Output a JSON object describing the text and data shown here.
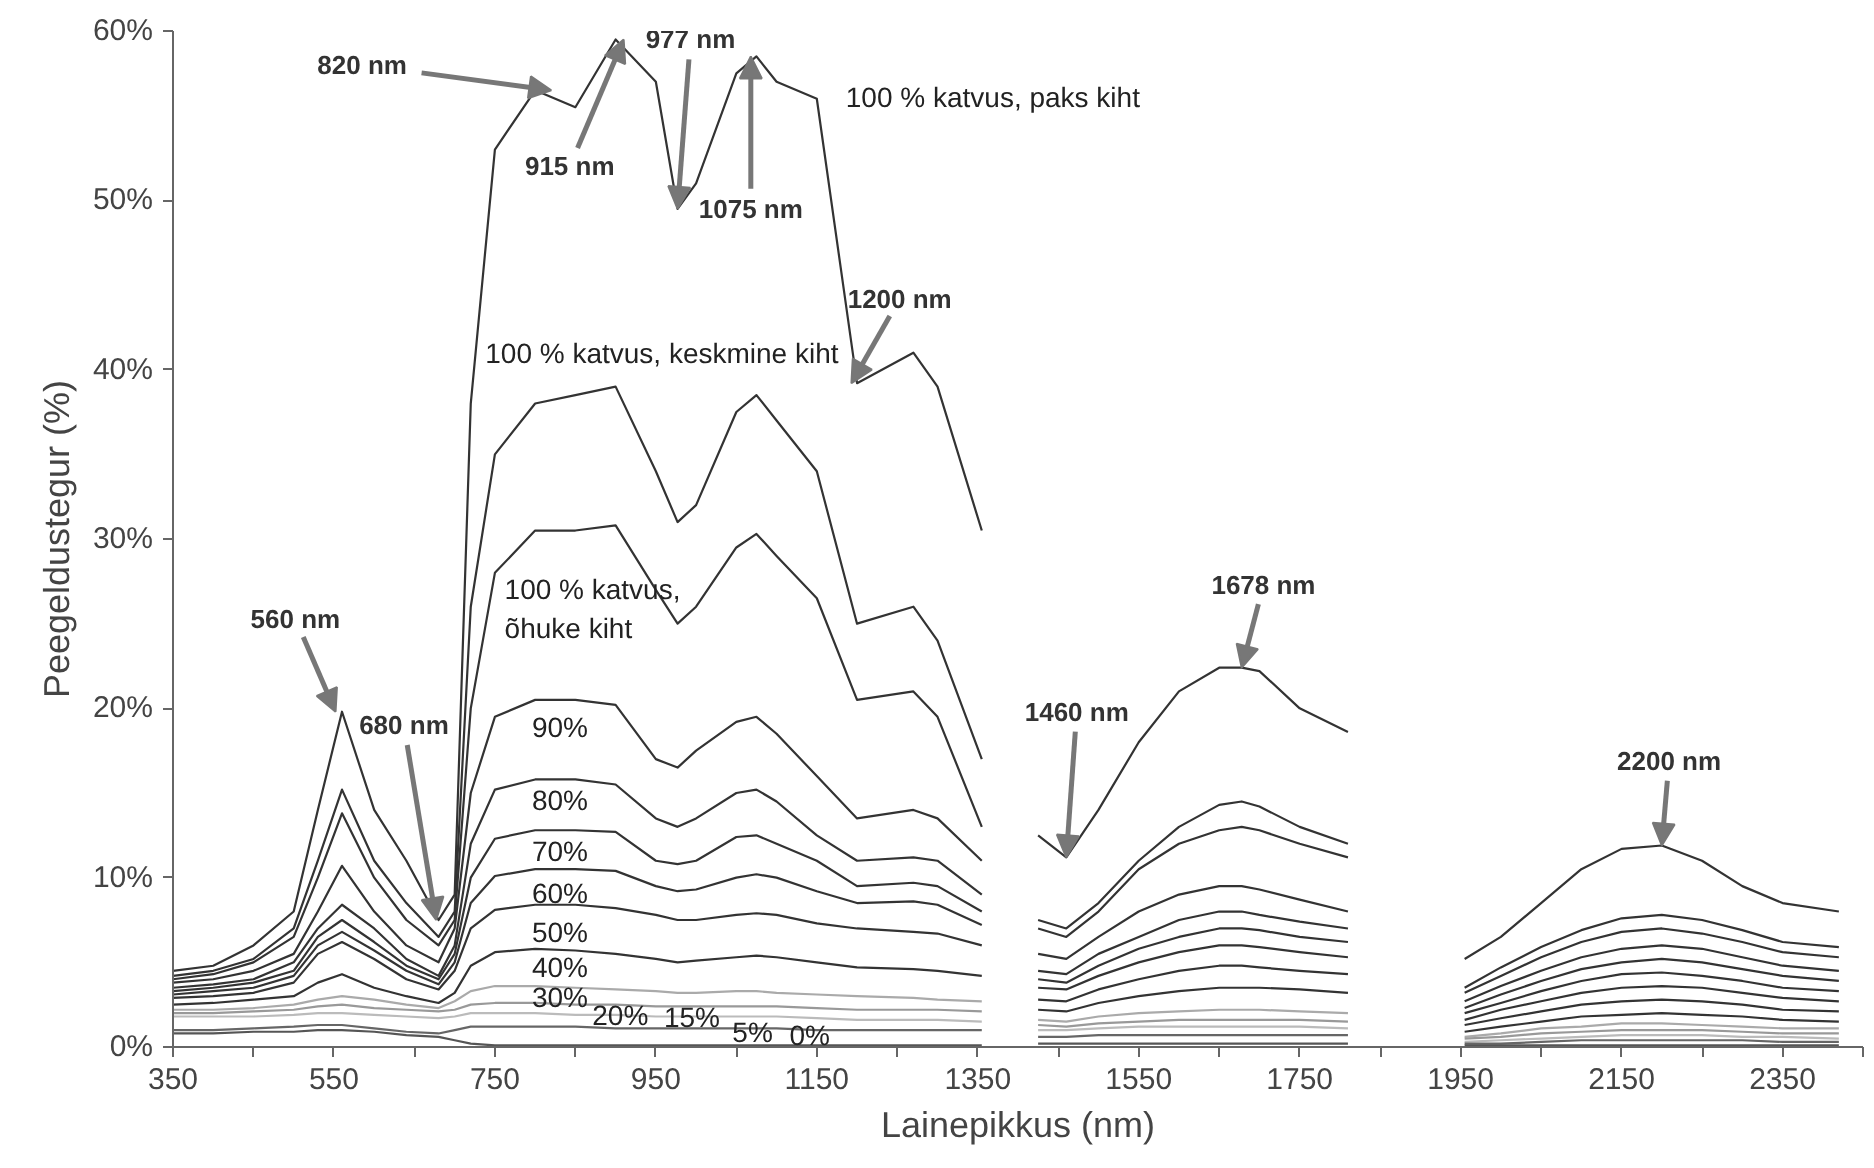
{
  "chart_data": {
    "type": "line",
    "xlabel": "Lainepikkus (nm)",
    "ylabel": "Peegeldustegur (%)",
    "xlim": [
      350,
      2450
    ],
    "ylim": [
      0,
      60
    ],
    "xticks": [
      350,
      {
        "value": 450,
        "label": null
      },
      550,
      {
        "value": 650,
        "label": null
      },
      750,
      {
        "value": 850,
        "label": null
      },
      950,
      {
        "value": 1050,
        "label": null
      },
      1150,
      {
        "value": 1250,
        "label": null
      },
      1350,
      {
        "value": 1450,
        "label": null
      },
      1550,
      {
        "value": 1650,
        "label": null
      },
      1750,
      {
        "value": 1850,
        "label": null
      },
      1950,
      {
        "value": 2050,
        "label": null
      },
      2150,
      {
        "value": 2250,
        "label": null
      },
      2350,
      {
        "value": 2450,
        "label": null
      }
    ],
    "yticks": [
      {
        "value": 0,
        "label": "0%"
      },
      {
        "value": 10,
        "label": "10%"
      },
      {
        "value": 20,
        "label": "20%"
      },
      {
        "value": 30,
        "label": "30%"
      },
      {
        "value": 40,
        "label": "40%"
      },
      {
        "value": 50,
        "label": "50%"
      },
      {
        "value": 60,
        "label": "60%"
      }
    ],
    "line_style": "solid",
    "x": [
      350,
      400,
      450,
      500,
      530,
      560,
      600,
      640,
      680,
      700,
      720,
      750,
      800,
      850,
      900,
      950,
      977,
      1000,
      1050,
      1075,
      1100,
      1150,
      1200,
      1270,
      1300,
      1355,
      1390,
      1425,
      1460,
      1500,
      1550,
      1600,
      1650,
      1678,
      1700,
      1750,
      1810,
      1880,
      1955,
      2000,
      2050,
      2100,
      2150,
      2200,
      2250,
      2300,
      2350,
      2420
    ],
    "series": [
      {
        "color": "#333333",
        "values": [
          4.5,
          4.8,
          6,
          8,
          14,
          19.8,
          14,
          11,
          7.5,
          9,
          38,
          53,
          56.5,
          55.5,
          59.5,
          57,
          49.5,
          51,
          57.5,
          58.5,
          57,
          56,
          39.2,
          41,
          39,
          30.5,
          null,
          12.5,
          11.2,
          14,
          18,
          21,
          22.4,
          22.4,
          22.2,
          20,
          18.6,
          null,
          5.2,
          6.5,
          8.5,
          10.5,
          11.7,
          11.9,
          11,
          9.5,
          8.5,
          8
        ]
      },
      {
        "color": "#333333",
        "values": [
          4.2,
          4.5,
          5.2,
          7,
          11,
          15.2,
          11,
          8.5,
          6.5,
          8,
          26,
          35,
          38,
          38.5,
          39,
          34,
          31,
          32,
          37.5,
          38.5,
          37,
          34,
          25,
          26,
          24,
          17,
          null,
          7.5,
          7,
          8.5,
          11,
          13,
          14.3,
          14.5,
          14.2,
          13,
          12,
          null,
          3.5,
          4.7,
          5.9,
          6.9,
          7.6,
          7.8,
          7.5,
          6.9,
          6.2,
          5.9
        ]
      },
      {
        "color": "#333333",
        "values": [
          4,
          4.3,
          5,
          6.5,
          10,
          13.8,
          10,
          7.5,
          6,
          7.5,
          20,
          28,
          30.5,
          30.5,
          30.8,
          27,
          25,
          26,
          29.5,
          30.3,
          29,
          26.5,
          20.5,
          21,
          19.5,
          13,
          null,
          7,
          6.5,
          8,
          10.5,
          12,
          12.8,
          13,
          12.8,
          12,
          11.2,
          null,
          3.2,
          4.2,
          5.3,
          6.2,
          6.8,
          7,
          6.7,
          6.2,
          5.6,
          5.3
        ]
      },
      {
        "color": "#333333",
        "values": [
          3.8,
          4,
          4.5,
          5.5,
          8,
          10.7,
          8,
          6,
          5,
          7,
          15,
          19.5,
          20.5,
          20.5,
          20.2,
          17,
          16.5,
          17.5,
          19.2,
          19.5,
          18.5,
          16,
          13.5,
          14,
          13.5,
          11,
          null,
          5.5,
          5.2,
          6.5,
          8,
          9,
          9.5,
          9.5,
          9.3,
          8.7,
          8,
          null,
          2.7,
          3.6,
          4.5,
          5.3,
          5.8,
          6,
          5.8,
          5.3,
          4.8,
          4.5
        ]
      },
      {
        "color": "#333333",
        "values": [
          3.5,
          3.7,
          4,
          5,
          7,
          8.4,
          7,
          5.2,
          4.2,
          6,
          12,
          15.2,
          15.8,
          15.8,
          15.5,
          13.5,
          13,
          13.5,
          15,
          15.2,
          14.5,
          12.5,
          11,
          11.2,
          11,
          9,
          null,
          4.5,
          4.3,
          5.5,
          6.5,
          7.5,
          8,
          8,
          7.8,
          7.4,
          7,
          null,
          2.3,
          3.1,
          3.9,
          4.6,
          5,
          5.2,
          5,
          4.6,
          4.2,
          3.9
        ]
      },
      {
        "color": "#333333",
        "values": [
          3.3,
          3.5,
          3.8,
          4.5,
          6.5,
          7.5,
          6.2,
          4.8,
          4,
          5.5,
          10,
          12.3,
          12.8,
          12.8,
          12.7,
          11,
          10.8,
          11,
          12.4,
          12.5,
          12,
          11,
          9.5,
          9.7,
          9.5,
          8,
          null,
          4,
          3.8,
          4.8,
          5.8,
          6.5,
          7,
          7,
          6.9,
          6.5,
          6.2,
          null,
          2,
          2.6,
          3.3,
          3.9,
          4.3,
          4.4,
          4.2,
          3.9,
          3.5,
          3.3
        ]
      },
      {
        "color": "#333333",
        "values": [
          3.1,
          3.3,
          3.5,
          4.2,
          6,
          6.8,
          5.7,
          4.5,
          3.7,
          5,
          8.5,
          10.1,
          10.5,
          10.5,
          10.4,
          9.5,
          9.2,
          9.3,
          10,
          10.2,
          10,
          9.2,
          8.5,
          8.6,
          8.4,
          7.2,
          null,
          3.5,
          3.4,
          4.2,
          5,
          5.6,
          6,
          6,
          5.9,
          5.6,
          5.3,
          null,
          1.6,
          2.2,
          2.7,
          3.2,
          3.5,
          3.6,
          3.5,
          3.2,
          2.9,
          2.7
        ]
      },
      {
        "color": "#333333",
        "values": [
          2.9,
          3,
          3.2,
          3.8,
          5.5,
          6.2,
          5.2,
          4,
          3.4,
          4.5,
          7,
          8.1,
          8.4,
          8.4,
          8.2,
          7.8,
          7.5,
          7.5,
          7.8,
          7.9,
          7.8,
          7.3,
          7,
          6.8,
          6.7,
          6,
          null,
          2.8,
          2.7,
          3.4,
          4,
          4.5,
          4.8,
          4.8,
          4.7,
          4.5,
          4.3,
          null,
          1.3,
          1.7,
          2.1,
          2.5,
          2.7,
          2.8,
          2.7,
          2.5,
          2.2,
          2.1
        ]
      },
      {
        "color": "#333333",
        "values": [
          2.5,
          2.6,
          2.8,
          3,
          3.8,
          4.3,
          3.5,
          3,
          2.6,
          3.2,
          4.8,
          5.6,
          5.8,
          5.7,
          5.5,
          5.2,
          5,
          5.1,
          5.3,
          5.4,
          5.3,
          5,
          4.7,
          4.6,
          4.5,
          4.2,
          null,
          2.2,
          2.1,
          2.6,
          3,
          3.3,
          3.5,
          3.5,
          3.5,
          3.4,
          3.2,
          null,
          0.9,
          1.2,
          1.5,
          1.8,
          1.9,
          2,
          1.9,
          1.8,
          1.6,
          1.5
        ]
      },
      {
        "color": "#aaaaaa",
        "values": [
          2.2,
          2.2,
          2.3,
          2.5,
          2.8,
          3,
          2.8,
          2.5,
          2.3,
          2.7,
          3.3,
          3.6,
          3.6,
          3.5,
          3.4,
          3.3,
          3.2,
          3.2,
          3.3,
          3.3,
          3.2,
          3.1,
          3,
          2.9,
          2.8,
          2.7,
          null,
          1.6,
          1.5,
          1.8,
          2,
          2.1,
          2.2,
          2.2,
          2.2,
          2.1,
          2,
          null,
          0.6,
          0.8,
          1.1,
          1.2,
          1.4,
          1.4,
          1.3,
          1.2,
          1.1,
          1.1
        ]
      },
      {
        "color": "#999999",
        "values": [
          2,
          2,
          2.1,
          2.2,
          2.4,
          2.5,
          2.3,
          2.2,
          2.1,
          2.2,
          2.5,
          2.6,
          2.6,
          2.5,
          2.5,
          2.4,
          2.4,
          2.4,
          2.4,
          2.4,
          2.4,
          2.3,
          2.2,
          2.2,
          2.2,
          2.1,
          null,
          1.3,
          1.2,
          1.4,
          1.5,
          1.6,
          1.6,
          1.6,
          1.6,
          1.6,
          1.5,
          null,
          0.5,
          0.6,
          0.8,
          0.9,
          1,
          1,
          1,
          0.9,
          0.8,
          0.8
        ]
      },
      {
        "color": "#bbbbbb",
        "values": [
          1.8,
          1.8,
          1.8,
          1.9,
          2,
          2,
          1.9,
          1.8,
          1.7,
          1.8,
          2,
          2,
          2,
          1.9,
          1.9,
          1.8,
          1.8,
          1.8,
          1.8,
          1.8,
          1.8,
          1.7,
          1.6,
          1.6,
          1.6,
          1.5,
          null,
          1,
          1,
          1.1,
          1.2,
          1.2,
          1.2,
          1.2,
          1.2,
          1.2,
          1.1,
          null,
          0.3,
          0.4,
          0.5,
          0.6,
          0.7,
          0.7,
          0.7,
          0.6,
          0.6,
          0.5
        ]
      },
      {
        "color": "#666666",
        "values": [
          1,
          1,
          1.1,
          1.2,
          1.3,
          1.3,
          1.1,
          0.9,
          0.8,
          1,
          1.2,
          1.2,
          1.2,
          1.2,
          1.1,
          1.1,
          1.1,
          1.1,
          1.1,
          1.1,
          1.1,
          1,
          1,
          1,
          1,
          1,
          null,
          0.6,
          0.6,
          0.7,
          0.7,
          0.7,
          0.7,
          0.7,
          0.7,
          0.7,
          0.7,
          null,
          0.2,
          0.2,
          0.3,
          0.4,
          0.4,
          0.4,
          0.4,
          0.4,
          0.3,
          0.3
        ]
      },
      {
        "color": "#555555",
        "values": [
          0.8,
          0.8,
          0.9,
          0.9,
          1,
          1,
          0.9,
          0.7,
          0.6,
          0.4,
          0.2,
          0.1,
          0.1,
          0.1,
          0.1,
          0.1,
          0.1,
          0.1,
          0.1,
          0.1,
          0.1,
          0.1,
          0.1,
          0.1,
          0.1,
          0.1,
          null,
          0.2,
          0.2,
          0.2,
          0.2,
          0.2,
          0.2,
          0.2,
          0.2,
          0.2,
          0.2,
          null,
          0.1,
          0.1,
          0.1,
          0.1,
          0.1,
          0.1,
          0.1,
          0.1,
          0.1,
          0.1
        ]
      }
    ],
    "annotations": [
      {
        "text": "820 nm",
        "x": 820,
        "y": 56.5
      },
      {
        "text": "915 nm",
        "x": 910,
        "y": 59.5
      },
      {
        "text": "977 nm",
        "x": 977,
        "y": 49.5
      },
      {
        "text": "1075 nm",
        "x": 1068,
        "y": 58.5
      },
      {
        "text": "1200 nm",
        "x": 1193,
        "y": 39.2
      },
      {
        "text": "560 nm",
        "x": 552,
        "y": 19.8
      },
      {
        "text": "680 nm",
        "x": 677,
        "y": 7.5
      },
      {
        "text": "1460 nm",
        "x": 1460,
        "y": 11.2
      },
      {
        "text": "1678 nm",
        "x": 1678,
        "y": 22.4
      },
      {
        "text": "2200 nm",
        "x": 2200,
        "y": 11.9
      },
      "100 % katvus, paks kiht",
      {
        "text": "100 % katvus, keskmine kiht",
        "x": 738,
        "y": 41
      },
      "100 % katvus,\nõhuke kiht",
      "90%",
      "80%",
      "70%",
      "60%",
      "50%",
      "40%",
      "30%",
      "20%",
      "15%",
      "5%",
      "0%"
    ]
  }
}
